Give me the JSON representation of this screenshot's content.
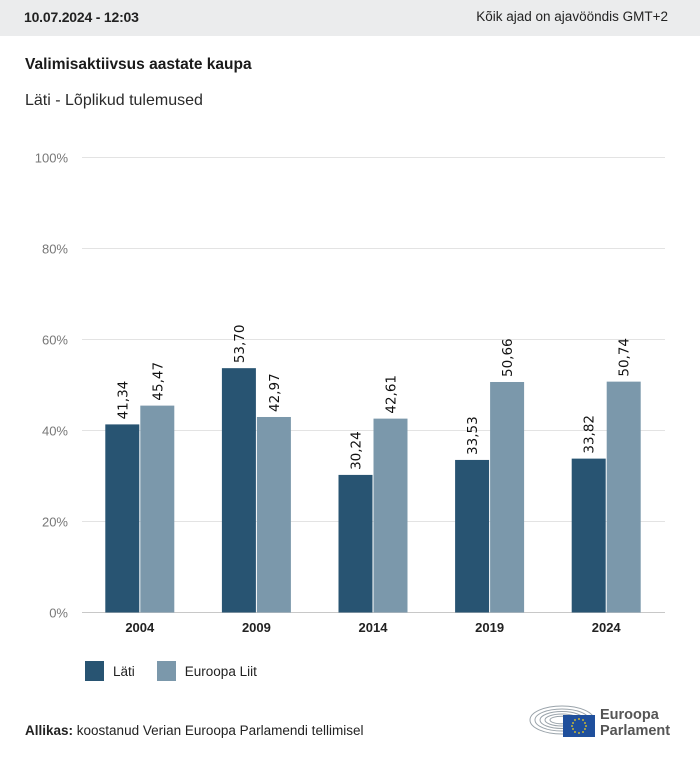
{
  "header": {
    "datetime": "10.07.2024 - 12:03",
    "timezone_note": "Kõik ajad on ajavööndis GMT+2"
  },
  "title": "Valimisaktiivsus aastate kaupa",
  "subtitle": "Läti - Lõplikud tulemused",
  "colors": {
    "lati": "#285472",
    "eu": "#7b98ab",
    "grid": "#e3e3e3",
    "axis": "#c8c8c8"
  },
  "chart_data": {
    "type": "bar",
    "title": "Valimisaktiivsus aastate kaupa",
    "subtitle": "Läti - Lõplikud tulemused",
    "xlabel": "",
    "ylabel": "",
    "categories": [
      "2004",
      "2009",
      "2014",
      "2019",
      "2024"
    ],
    "series": [
      {
        "name": "Läti",
        "values": [
          41.34,
          53.7,
          30.24,
          33.53,
          33.82
        ],
        "labels": [
          "41,34",
          "53,70",
          "30,24",
          "33,53",
          "33,82"
        ]
      },
      {
        "name": "Euroopa Liit",
        "values": [
          45.47,
          42.97,
          42.61,
          50.66,
          50.74
        ],
        "labels": [
          "45,47",
          "42,97",
          "42,61",
          "50,66",
          "50,74"
        ]
      }
    ],
    "ylim": [
      0,
      100
    ],
    "yticks": [
      0,
      20,
      40,
      60,
      80,
      100
    ],
    "ytick_labels": [
      "0%",
      "20%",
      "40%",
      "60%",
      "80%",
      "100%"
    ],
    "grid": true,
    "legend": "bottom-left"
  },
  "legend": {
    "items": [
      {
        "label": "Läti"
      },
      {
        "label": "Euroopa Liit"
      }
    ]
  },
  "footer": {
    "source_label": "Allikas:",
    "source_text": " koostanud Verian Euroopa Parlamendi tellimisel",
    "logo_line1": "Euroopa",
    "logo_line2": "Parlament"
  }
}
